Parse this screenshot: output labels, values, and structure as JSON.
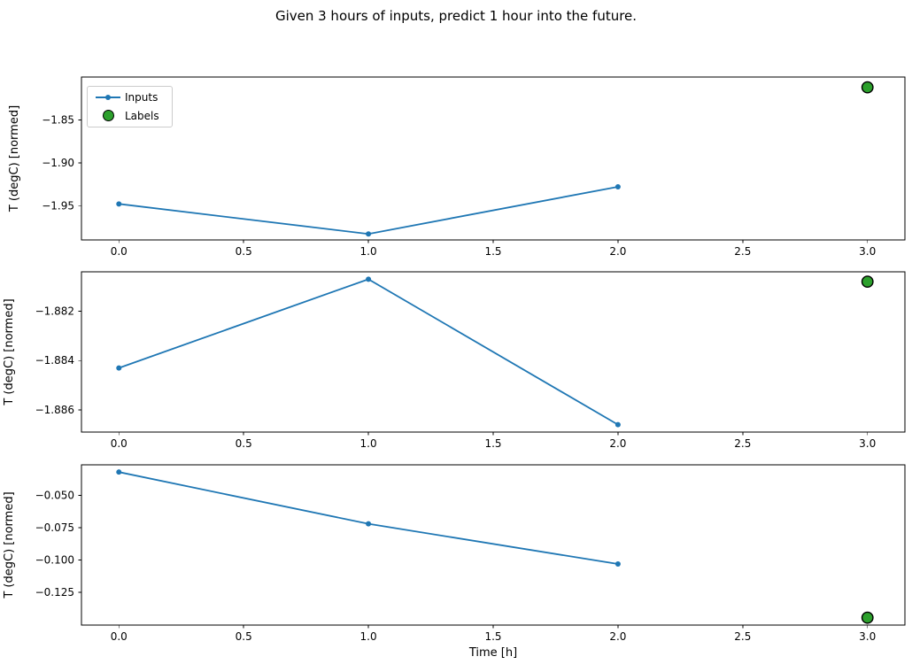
{
  "figure": {
    "title": "Given 3 hours of inputs, predict 1 hour into the future.",
    "xlabel": "Time [h]",
    "ylabel": "T (degC) [normed]"
  },
  "legend": {
    "inputs_label": "Inputs",
    "labels_label": "Labels"
  },
  "colors": {
    "inputs": "#1f77b4",
    "labels_fill": "#2ca02c",
    "labels_edge": "#000000",
    "axis": "#000000",
    "legend_border": "#cccccc"
  },
  "chart_data": [
    {
      "type": "line",
      "ylabel": "T (degC) [normed]",
      "xlim": [
        -0.15,
        3.15
      ],
      "x_ticks": [
        0.0,
        0.5,
        1.0,
        1.5,
        2.0,
        2.5,
        3.0
      ],
      "x_tick_labels": [
        "0.0",
        "0.5",
        "1.0",
        "1.5",
        "2.0",
        "2.5",
        "3.0"
      ],
      "ylim": [
        -1.99,
        -1.8
      ],
      "y_ticks": [
        -1.85,
        -1.9,
        -1.95
      ],
      "y_tick_labels": [
        "−1.85",
        "−1.90",
        "−1.95"
      ],
      "grid": false,
      "legend": true,
      "legend_position": "upper left",
      "series": [
        {
          "name": "Inputs",
          "type": "line",
          "x": [
            0,
            1,
            2
          ],
          "y": [
            -1.948,
            -1.983,
            -1.928
          ]
        },
        {
          "name": "Labels",
          "type": "scatter",
          "x": [
            3
          ],
          "y": [
            -1.812
          ]
        }
      ]
    },
    {
      "type": "line",
      "ylabel": "T (degC) [normed]",
      "xlim": [
        -0.15,
        3.15
      ],
      "x_ticks": [
        0.0,
        0.5,
        1.0,
        1.5,
        2.0,
        2.5,
        3.0
      ],
      "x_tick_labels": [
        "0.0",
        "0.5",
        "1.0",
        "1.5",
        "2.0",
        "2.5",
        "3.0"
      ],
      "ylim": [
        -1.8869,
        -1.8804
      ],
      "y_ticks": [
        -1.882,
        -1.884,
        -1.886
      ],
      "y_tick_labels": [
        "−1.882",
        "−1.884",
        "−1.886"
      ],
      "grid": false,
      "legend": false,
      "series": [
        {
          "name": "Inputs",
          "type": "line",
          "x": [
            0,
            1,
            2
          ],
          "y": [
            -1.8843,
            -1.8807,
            -1.8866
          ]
        },
        {
          "name": "Labels",
          "type": "scatter",
          "x": [
            3
          ],
          "y": [
            -1.8808
          ]
        }
      ]
    },
    {
      "type": "line",
      "ylabel": "T (degC) [normed]",
      "xlabel": "Time [h]",
      "xlim": [
        -0.15,
        3.15
      ],
      "x_ticks": [
        0.0,
        0.5,
        1.0,
        1.5,
        2.0,
        2.5,
        3.0
      ],
      "x_tick_labels": [
        "0.0",
        "0.5",
        "1.0",
        "1.5",
        "2.0",
        "2.5",
        "3.0"
      ],
      "ylim": [
        -0.1502,
        -0.0264
      ],
      "y_ticks": [
        -0.05,
        -0.075,
        -0.1,
        -0.125
      ],
      "y_tick_labels": [
        "−0.050",
        "−0.075",
        "−0.100",
        "−0.125"
      ],
      "grid": false,
      "legend": false,
      "series": [
        {
          "name": "Inputs",
          "type": "line",
          "x": [
            0,
            1,
            2
          ],
          "y": [
            -0.032,
            -0.072,
            -0.103
          ]
        },
        {
          "name": "Labels",
          "type": "scatter",
          "x": [
            3
          ],
          "y": [
            -0.1445
          ]
        }
      ]
    }
  ]
}
